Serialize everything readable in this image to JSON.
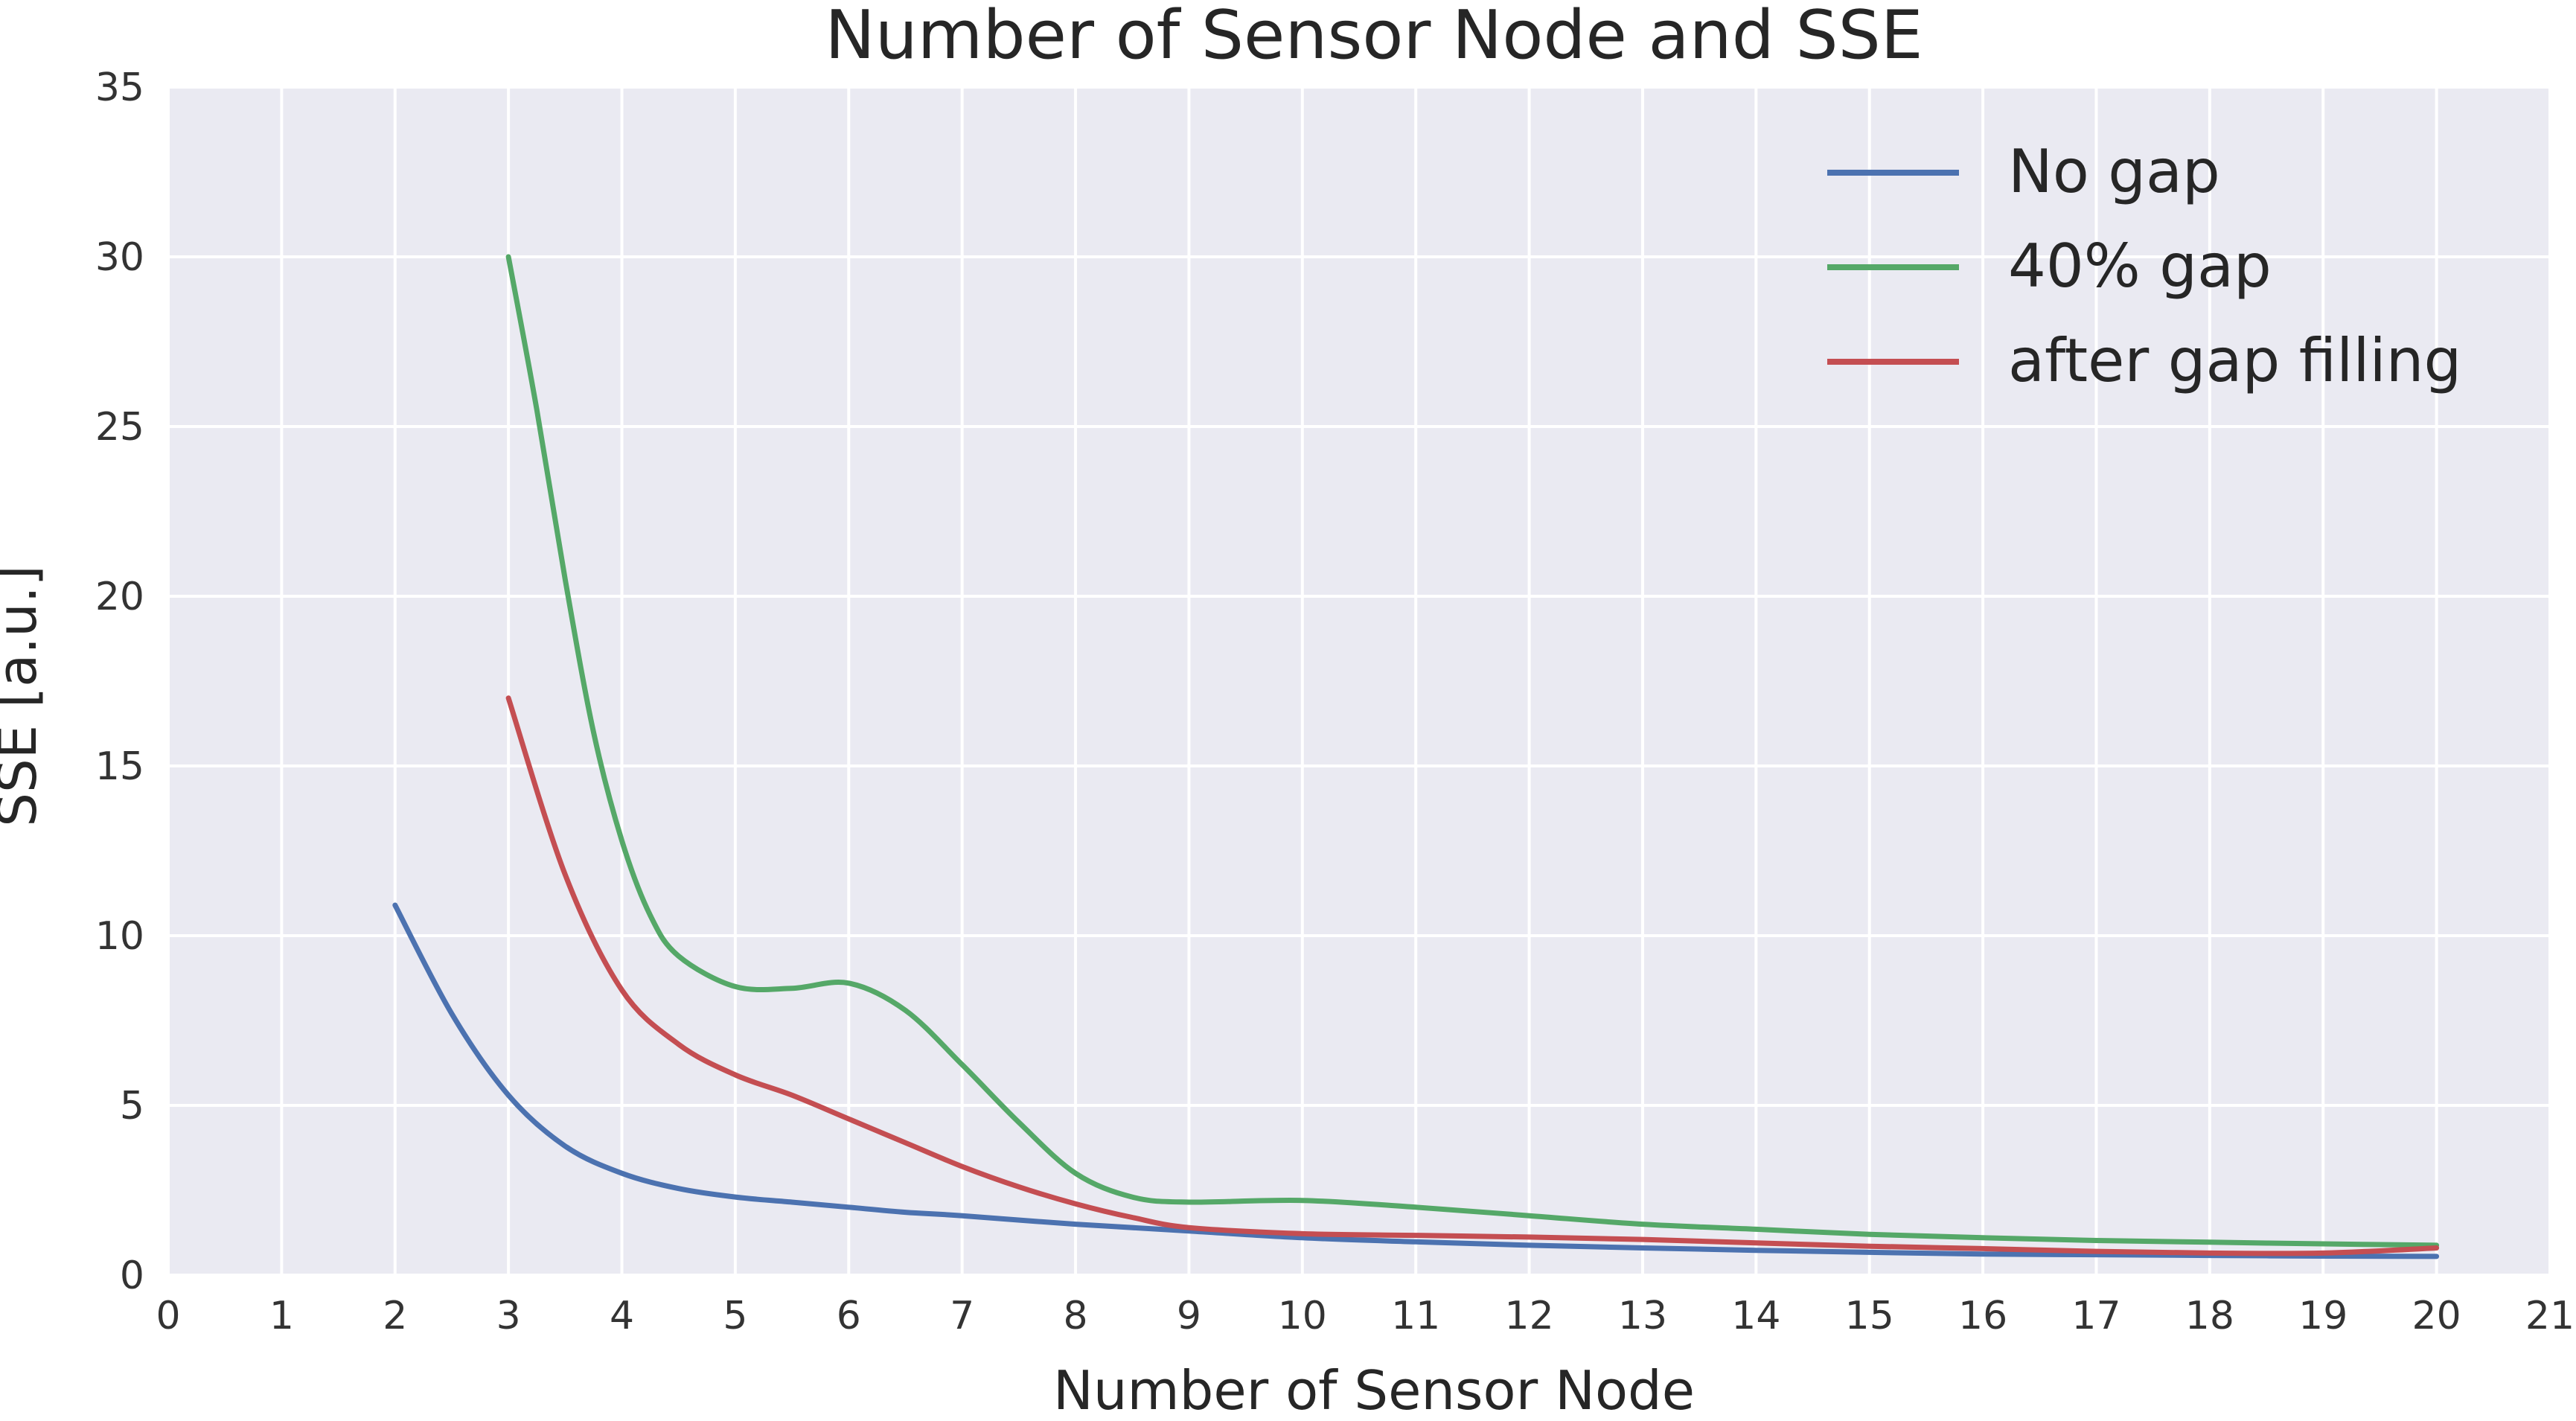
{
  "chart_data": {
    "type": "line",
    "title": "Number of Sensor Node and SSE",
    "xlabel": "Number of Sensor Node",
    "ylabel": "SSE [a.u.]",
    "xlim": [
      0,
      21
    ],
    "ylim": [
      0,
      35
    ],
    "xticks": [
      0,
      1,
      2,
      3,
      4,
      5,
      6,
      7,
      8,
      9,
      10,
      11,
      12,
      13,
      14,
      15,
      16,
      17,
      18,
      19,
      20,
      21
    ],
    "yticks": [
      0,
      5,
      10,
      15,
      20,
      25,
      30,
      35
    ],
    "grid": true,
    "legend_position": "top-right",
    "series": [
      {
        "name": "No gap",
        "color": "#4C72B0",
        "x": [
          2,
          2.5,
          3,
          3.5,
          4,
          4.5,
          5,
          5.5,
          6,
          6.5,
          7,
          8,
          9,
          10,
          11,
          12,
          13,
          14,
          15,
          16,
          17,
          18,
          19,
          20
        ],
        "y": [
          10.9,
          7.7,
          5.3,
          3.8,
          3.0,
          2.55,
          2.3,
          2.15,
          2.0,
          1.85,
          1.75,
          1.5,
          1.3,
          1.1,
          0.98,
          0.88,
          0.8,
          0.73,
          0.67,
          0.62,
          0.6,
          0.58,
          0.56,
          0.55
        ]
      },
      {
        "name": "40% gap",
        "color": "#55A868",
        "x": [
          3,
          3.25,
          3.5,
          3.75,
          4,
          4.25,
          4.5,
          5,
          5.5,
          6,
          6.5,
          7,
          7.5,
          8,
          8.5,
          9,
          10,
          11,
          12,
          13,
          14,
          15,
          16,
          17,
          18,
          19,
          20
        ],
        "y": [
          30.0,
          25.5,
          20.5,
          16.0,
          12.8,
          10.6,
          9.4,
          8.5,
          8.45,
          8.6,
          7.8,
          6.2,
          4.5,
          3.0,
          2.3,
          2.15,
          2.2,
          2.0,
          1.75,
          1.5,
          1.35,
          1.2,
          1.1,
          1.02,
          0.97,
          0.92,
          0.88
        ]
      },
      {
        "name": "after gap filling",
        "color": "#C44E52",
        "x": [
          3,
          3.5,
          4,
          4.5,
          5,
          5.5,
          6,
          6.5,
          7,
          7.5,
          8,
          8.5,
          9,
          10,
          11,
          12,
          13,
          14,
          15,
          16,
          17,
          18,
          19,
          20
        ],
        "y": [
          17.0,
          11.8,
          8.4,
          6.8,
          5.9,
          5.3,
          4.6,
          3.9,
          3.2,
          2.6,
          2.1,
          1.7,
          1.4,
          1.22,
          1.17,
          1.12,
          1.05,
          0.95,
          0.85,
          0.78,
          0.7,
          0.65,
          0.65,
          0.8
        ]
      }
    ]
  }
}
